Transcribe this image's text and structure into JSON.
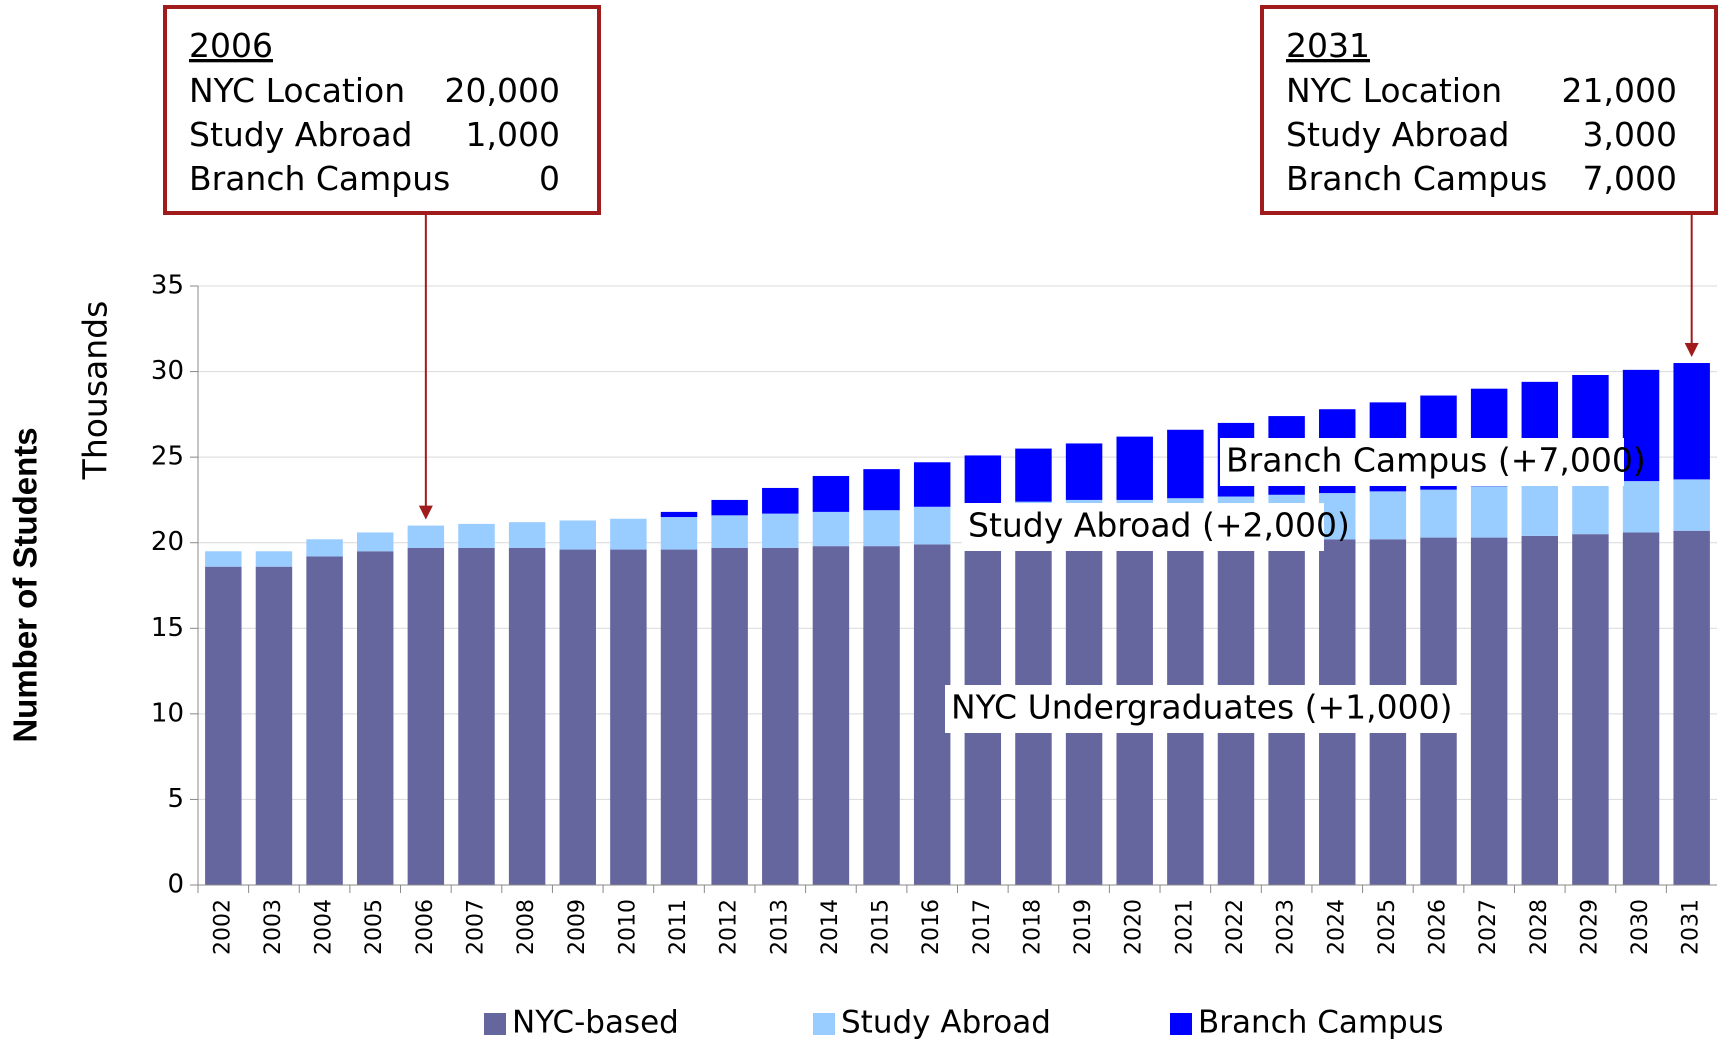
{
  "chart_data": {
    "type": "stacked_bar",
    "y_label": "Number of Students",
    "y_units": "Thousands",
    "categories": [
      "2002",
      "2003",
      "2004",
      "2005",
      "2006",
      "2007",
      "2008",
      "2009",
      "2010",
      "2011",
      "2012",
      "2013",
      "2014",
      "2015",
      "2016",
      "2017",
      "2018",
      "2019",
      "2020",
      "2021",
      "2022",
      "2023",
      "2024",
      "2025",
      "2026",
      "2027",
      "2028",
      "2029",
      "2030",
      "2031"
    ],
    "series": [
      {
        "name": "NYC-based",
        "color": "#66669e",
        "values": [
          18.6,
          18.6,
          19.2,
          19.5,
          19.7,
          19.7,
          19.7,
          19.6,
          19.6,
          19.6,
          19.7,
          19.7,
          19.8,
          19.8,
          19.9,
          19.9,
          19.9,
          19.9,
          19.9,
          19.9,
          19.9,
          19.9,
          20.2,
          20.2,
          20.3,
          20.3,
          20.4,
          20.5,
          20.6,
          20.7
        ]
      },
      {
        "name": "Study Abroad",
        "color": "#99ccff",
        "values": [
          0.9,
          0.9,
          1.0,
          1.1,
          1.3,
          1.4,
          1.5,
          1.7,
          1.8,
          1.9,
          1.9,
          2.0,
          2.0,
          2.1,
          2.2,
          2.4,
          2.5,
          2.6,
          2.6,
          2.7,
          2.8,
          2.9,
          2.7,
          2.8,
          2.8,
          3.0,
          3.0,
          3.0,
          3.0,
          3.0
        ]
      },
      {
        "name": "Branch Campus",
        "color": "#0000ff",
        "values": [
          0,
          0,
          0,
          0,
          0,
          0,
          0,
          0,
          0,
          0.3,
          0.9,
          1.5,
          2.1,
          2.4,
          2.6,
          2.8,
          3.1,
          3.3,
          3.7,
          4.0,
          4.3,
          4.6,
          4.9,
          5.2,
          5.5,
          5.7,
          6.0,
          6.3,
          6.5,
          6.8
        ]
      }
    ],
    "ylim": [
      0,
      35
    ],
    "yticks": [
      0,
      5,
      10,
      15,
      20,
      25,
      30,
      35
    ],
    "grid": true,
    "segment_labels": [
      "Branch Campus (+7,000)",
      "Study Abroad (+2,000)",
      "NYC Undergraduates (+1,000)"
    ],
    "annotations": [
      {
        "title": "2006",
        "rows": [
          [
            "NYC Location",
            "20,000"
          ],
          [
            "Study Abroad",
            "1,000"
          ],
          [
            "Branch Campus",
            "0"
          ]
        ]
      },
      {
        "title": "2031",
        "rows": [
          [
            "NYC Location",
            "21,000"
          ],
          [
            "Study Abroad",
            "3,000"
          ],
          [
            "Branch Campus",
            "7,000"
          ]
        ]
      }
    ]
  }
}
